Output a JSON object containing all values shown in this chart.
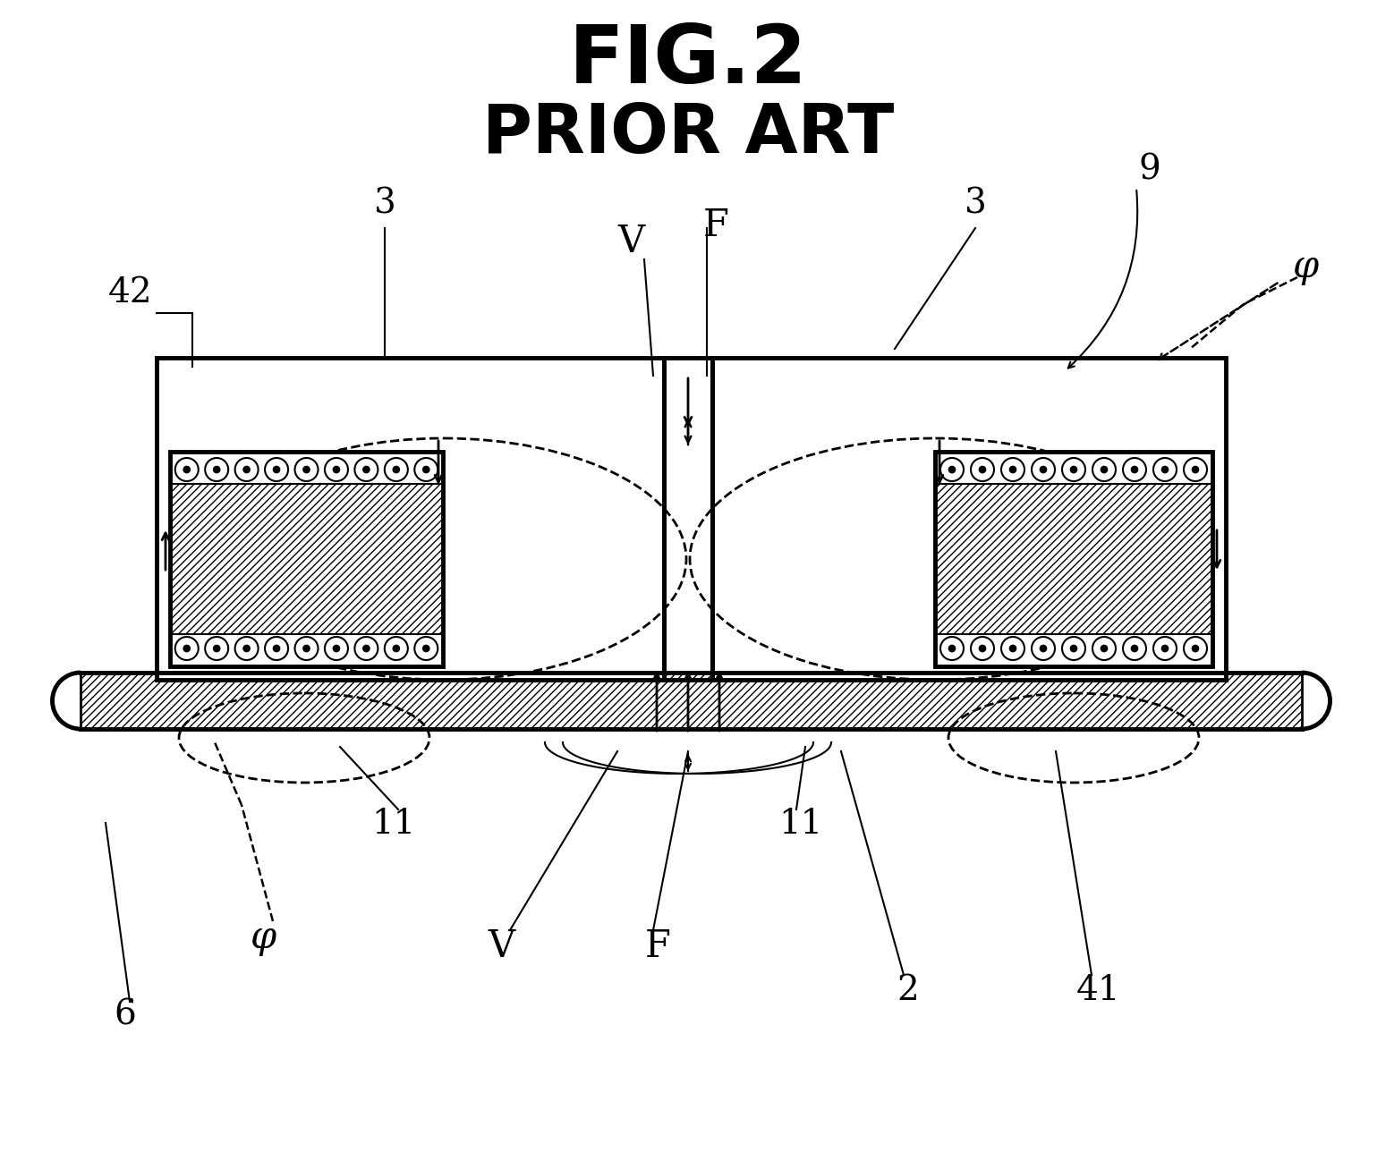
{
  "title1": "FIG.2",
  "title2": "PRIOR ART",
  "background": "#ffffff",
  "fig_fontsize": 65,
  "prior_art_fontsize": 55,
  "label_fontsize": 28,
  "symbol_fontsize": 30,
  "labels": {
    "fig": "FIG.2",
    "prior_art": "PRIOR ART",
    "label_42": "42",
    "label_3a": "3",
    "label_3b": "3",
    "label_9": "9",
    "label_phi_top": "φ",
    "label_V_top": "V",
    "label_F_top": "F",
    "label_6": "6",
    "label_phi_bot": "φ",
    "label_11a": "11",
    "label_V_bot": "V",
    "label_F_bot": "F",
    "label_11b": "11",
    "label_2": "2",
    "label_41": "41"
  }
}
